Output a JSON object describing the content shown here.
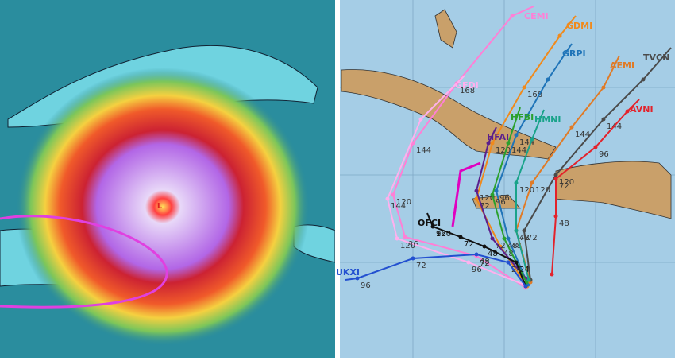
{
  "left_panel": {
    "center_label": "L"
  },
  "right_panel": {
    "tracks": [
      {
        "name": "CEMI",
        "color": "#ff7fd6",
        "hours": [
          "72",
          "96",
          "120",
          "144",
          "168"
        ]
      },
      {
        "name": "GFDI",
        "color": "#ffb0ee",
        "hours": [
          "96",
          "120",
          "144"
        ]
      },
      {
        "name": "GDMI",
        "color": "#f08a1c",
        "hours": [
          "48",
          "72",
          "120",
          "168"
        ]
      },
      {
        "name": "GRPI",
        "color": "#1f74b8",
        "hours": [
          "48",
          "96",
          "144"
        ]
      },
      {
        "name": "AEMI",
        "color": "#e07b27",
        "hours": [
          "48",
          "120",
          "144"
        ]
      },
      {
        "name": "TVCN",
        "color": "#4a4a4a",
        "hours": [
          "72",
          "120",
          "144"
        ]
      },
      {
        "name": "AVNI",
        "color": "#e3222b",
        "hours": [
          "48",
          "72",
          "96"
        ]
      },
      {
        "name": "HFAI",
        "color": "#5b1f8c",
        "hours": [
          "72",
          "120"
        ]
      },
      {
        "name": "HFBI",
        "color": "#2aa02c",
        "hours": [
          "48",
          "96",
          "144"
        ]
      },
      {
        "name": "HMNI",
        "color": "#19a38a",
        "hours": [
          "72",
          "120"
        ]
      },
      {
        "name": "OFCI",
        "color": "#111111",
        "hours": [
          "24",
          "48",
          "72",
          "96",
          "120"
        ]
      },
      {
        "name": "UKXI",
        "color": "#2350d0",
        "hours": [
          "24",
          "48",
          "72",
          "96"
        ]
      }
    ]
  }
}
